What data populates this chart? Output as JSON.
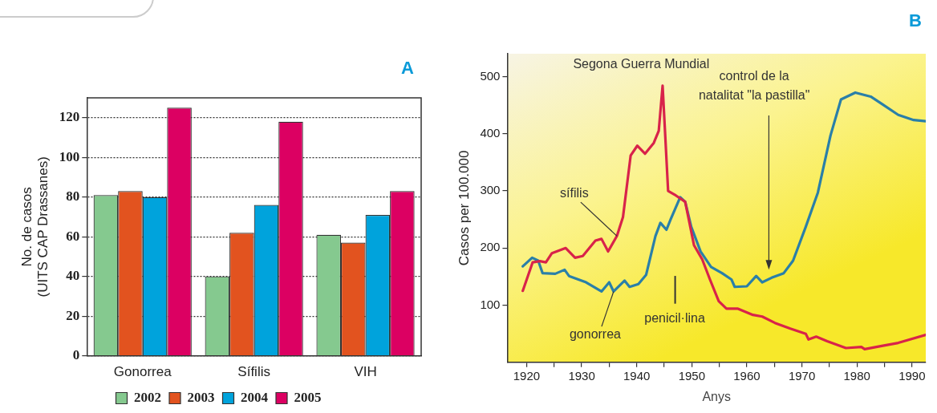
{
  "chart_data": [
    {
      "type": "bar",
      "title": "A",
      "ylabel": "No. de casos (UITS CAP Drassanes)",
      "categories": [
        "Gonorrea",
        "Sífilis",
        "VIH"
      ],
      "series": [
        {
          "name": "2002",
          "color": "#85c98f",
          "values": [
            81,
            40,
            61
          ]
        },
        {
          "name": "2003",
          "color": "#e2531f",
          "values": [
            83,
            62,
            57
          ]
        },
        {
          "name": "2004",
          "color": "#00a3dc",
          "values": [
            80,
            76,
            71
          ]
        },
        {
          "name": "2005",
          "color": "#dc0062",
          "values": [
            125,
            118,
            83
          ]
        }
      ],
      "ylim": [
        0,
        130
      ],
      "yticks": [
        0,
        20,
        40,
        60,
        80,
        100,
        120
      ],
      "grid": "y",
      "legend": "bottom"
    },
    {
      "type": "line",
      "title": "B",
      "xlabel": "Anys",
      "ylabel": "Casos per 100.000",
      "xlim": [
        1916.5,
        1992.5
      ],
      "xticks": [
        1920,
        {
          "value": 1925,
          "label": null
        },
        1930,
        {
          "value": 1935,
          "label": null
        },
        1940,
        {
          "value": 1945,
          "label": null
        },
        1950,
        {
          "value": 1955,
          "label": null
        },
        1960,
        {
          "value": 1965,
          "label": null
        },
        1970,
        {
          "value": 1975,
          "label": null
        },
        1980,
        {
          "value": 1985,
          "label": null
        },
        1990
      ],
      "ylim": [
        0,
        540
      ],
      "yticks": [
        100,
        200,
        300,
        400,
        500
      ],
      "grid": false,
      "legend": false,
      "marker": "none",
      "line_style": "solid",
      "series": [
        {
          "name": "sífilis",
          "color": "#d8234a",
          "x": [
            1919.3,
            1921.1,
            1922.4,
            1923.5,
            1924.6,
            1927.1,
            1928.8,
            1930.2,
            1932.5,
            1933.6,
            1934.8,
            1936.4,
            1937.5,
            1938.9,
            1940.1,
            1941.5,
            1943.1,
            1944.0,
            1944.7,
            1945.1,
            1945.7,
            1947.1,
            1948.8,
            1950.4,
            1951.9,
            1953.3,
            1954.9,
            1956.3,
            1958.3,
            1961.1,
            1962.8,
            1965.1,
            1967.9,
            1970.7,
            1971.2,
            1972.6,
            1974.6,
            1978.0,
            1980.8,
            1981.4,
            1984.7,
            1987.5,
            1992.5
          ],
          "values": [
            125,
            175,
            177,
            175,
            191,
            200,
            183,
            186,
            213,
            216,
            194,
            221,
            254,
            362,
            379,
            365,
            384,
            405,
            484,
            411,
            300,
            292,
            281,
            205,
            180,
            145,
            107,
            94,
            94,
            83,
            80,
            69,
            59,
            50,
            40,
            45,
            37,
            25,
            27,
            23,
            29,
            34,
            48
          ]
        },
        {
          "name": "gonorrea",
          "color": "#2a7fa8",
          "x": [
            1919.3,
            1921.0,
            1922.1,
            1922.9,
            1925.2,
            1926.9,
            1927.7,
            1930.8,
            1933.6,
            1935.0,
            1935.8,
            1937.8,
            1938.7,
            1940.3,
            1941.7,
            1943.4,
            1944.3,
            1945.4,
            1946.2,
            1947.9,
            1948.8,
            1949.9,
            1951.6,
            1953.5,
            1955.5,
            1957.2,
            1957.8,
            1960.0,
            1961.7,
            1962.8,
            1964.5,
            1966.7,
            1968.4,
            1970.7,
            1972.9,
            1975.2,
            1977.1,
            1979.7,
            1982.5,
            1984.7,
            1987.5,
            1990.3,
            1992.5
          ],
          "values": [
            168,
            183,
            178,
            156,
            155,
            162,
            151,
            140,
            124,
            140,
            124,
            143,
            132,
            137,
            153,
            221,
            244,
            232,
            251,
            289,
            281,
            237,
            194,
            167,
            156,
            145,
            132,
            133,
            151,
            140,
            148,
            156,
            178,
            237,
            297,
            397,
            460,
            472,
            465,
            451,
            433,
            424,
            422
          ]
        }
      ],
      "annotations": [
        "Segona Guerra Mundial",
        "penicil·lina",
        "control de la natalitat \"la pastilla\""
      ]
    }
  ]
}
